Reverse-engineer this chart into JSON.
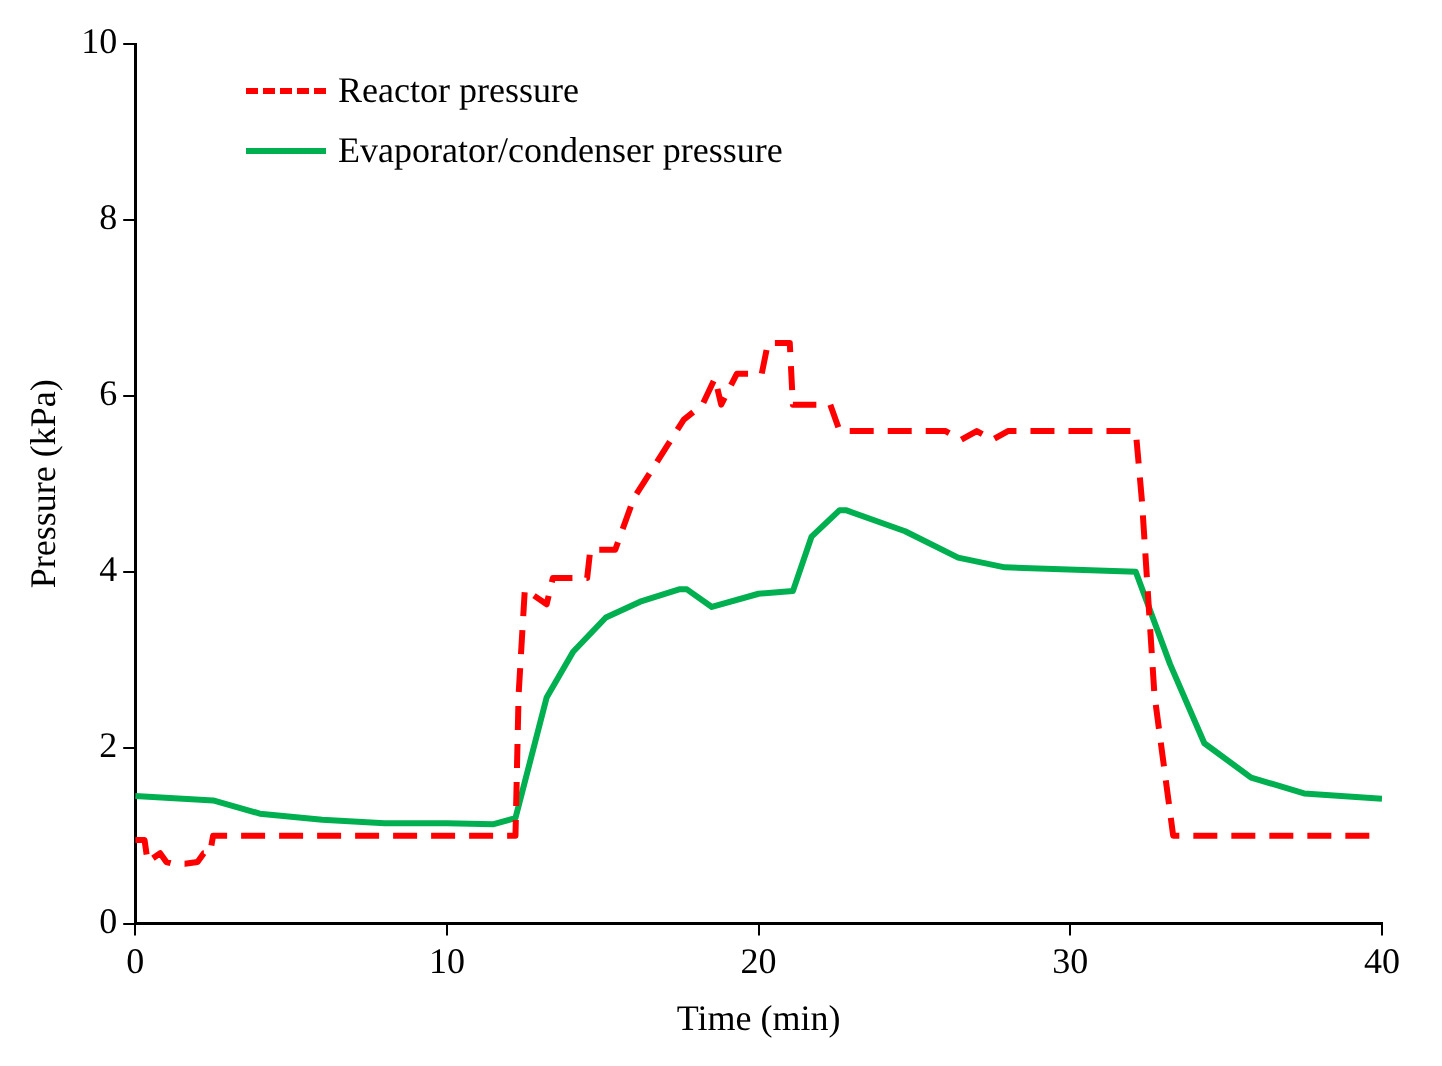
{
  "chart_data": {
    "type": "line",
    "xlabel": "Time (min)",
    "ylabel": "Pressure (kPa)",
    "xlim": [
      0,
      40
    ],
    "xticks": [
      0,
      10,
      20,
      30,
      40
    ],
    "ylim": [
      0,
      10
    ],
    "yticks": [
      0,
      2,
      4,
      6,
      8,
      10
    ],
    "grid": false,
    "legend": "top left",
    "marker": "none",
    "series": [
      {
        "name": "Reactor pressure",
        "color": "#ff0000",
        "line_style": "dashed",
        "x": [
          0,
          0.3,
          0.4,
          0.8,
          1.0,
          1.2,
          1.6,
          2.0,
          2.2,
          2.4,
          2.5,
          12.2,
          12.3,
          12.5,
          13.2,
          13.4,
          14.5,
          14.6,
          15.4,
          16.0,
          17.1,
          17.6,
          18.2,
          18.6,
          18.8,
          19.3,
          20.1,
          20.3,
          21.0,
          21.1,
          22.3,
          22.6,
          26.0,
          26.5,
          27.0,
          27.5,
          28.0,
          32.1,
          32.3,
          32.7,
          33.3,
          40
        ],
        "values": [
          0.95,
          0.95,
          0.7,
          0.8,
          0.7,
          0.68,
          0.68,
          0.7,
          0.8,
          0.8,
          1.0,
          1.0,
          2.6,
          3.8,
          3.63,
          3.93,
          3.93,
          4.25,
          4.25,
          4.84,
          5.45,
          5.73,
          5.9,
          6.2,
          5.9,
          6.25,
          6.25,
          6.6,
          6.6,
          5.9,
          5.9,
          5.6,
          5.6,
          5.5,
          5.6,
          5.5,
          5.6,
          5.6,
          4.8,
          2.6,
          1.0,
          1.0
        ]
      },
      {
        "name": "Evaporator/condenser pressure",
        "color": "#00b050",
        "line_style": "solid",
        "x": [
          0,
          2.5,
          4,
          6,
          8,
          10,
          11.5,
          12.2,
          13.2,
          14.05,
          15.1,
          16.2,
          17.45,
          17.7,
          18.5,
          20,
          21.1,
          21.7,
          22.6,
          22.8,
          24.7,
          26.4,
          27.9,
          32.1,
          33.2,
          34.3,
          35.8,
          37.5,
          40
        ],
        "values": [
          1.45,
          1.4,
          1.25,
          1.18,
          1.14,
          1.14,
          1.13,
          1.2,
          2.57,
          3.09,
          3.48,
          3.66,
          3.8,
          3.8,
          3.6,
          3.75,
          3.78,
          4.4,
          4.7,
          4.7,
          4.46,
          4.16,
          4.05,
          4.0,
          2.95,
          2.05,
          1.66,
          1.48,
          1.42
        ]
      }
    ]
  }
}
